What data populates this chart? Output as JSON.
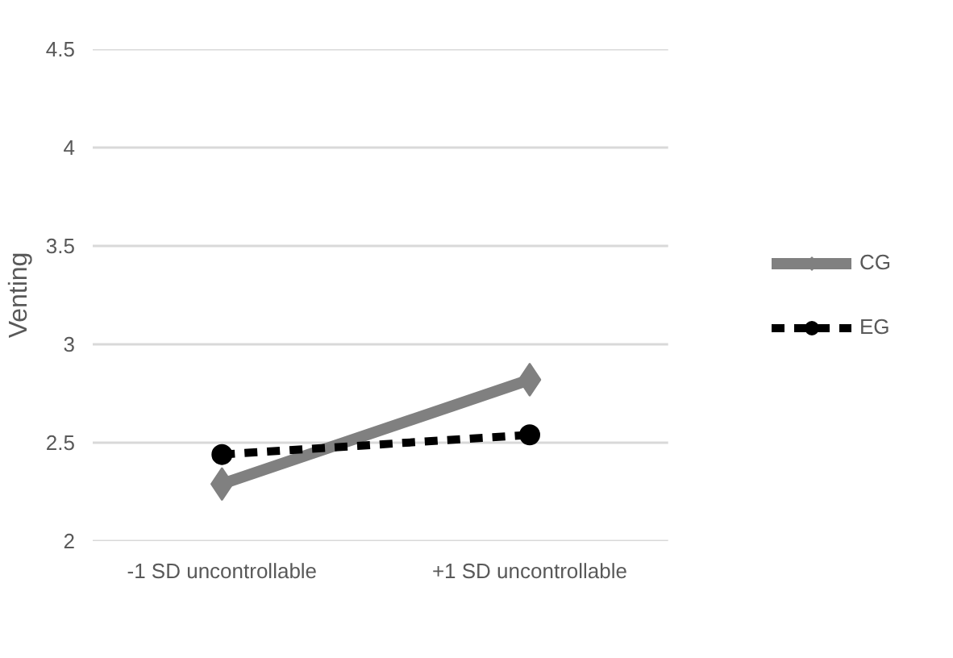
{
  "chart_data": {
    "type": "line",
    "ylabel": "Venting",
    "categories": [
      "-1 SD uncontrollable",
      "+1 SD uncontrollable"
    ],
    "series": [
      {
        "name": "CG",
        "color": "#808080",
        "values": [
          2.29,
          2.82
        ],
        "marker": "diamond",
        "line_style": "solid"
      },
      {
        "name": "EG",
        "color": "#000000",
        "values": [
          2.44,
          2.54
        ],
        "marker": "circle",
        "line_style": "dashed"
      }
    ],
    "ylim": [
      2,
      4.5
    ],
    "yticks": [
      2,
      2.5,
      3,
      3.5,
      4,
      4.5
    ],
    "grid": "y",
    "legend": "right"
  }
}
